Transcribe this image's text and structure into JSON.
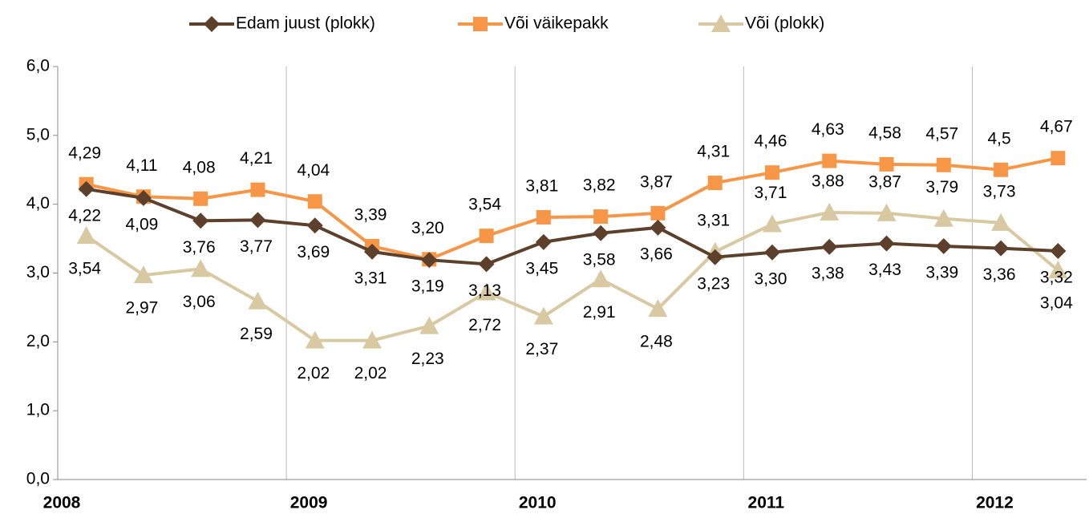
{
  "chart_data": {
    "type": "line",
    "categories": [
      "2008",
      null,
      null,
      null,
      "2009",
      null,
      null,
      null,
      "2010",
      null,
      null,
      null,
      "2011",
      null,
      null,
      null,
      "2012",
      null
    ],
    "series": [
      {
        "name": "Edam juust (plokk)",
        "color": "#5c402b",
        "marker": "diamond",
        "values": [
          4.22,
          4.09,
          3.76,
          3.77,
          3.69,
          3.31,
          3.19,
          3.13,
          3.45,
          3.58,
          3.66,
          3.23,
          3.3,
          3.38,
          3.43,
          3.39,
          3.36,
          3.32
        ],
        "value_labels": [
          "4,22",
          "4,09",
          "3,76",
          "3,77",
          "3,69",
          "3,31",
          "3,19",
          "3,13",
          "3,45",
          "3,58",
          "3,66",
          "3,23",
          "3,30",
          "3,38",
          "3,43",
          "3,39",
          "3,36",
          "3,32"
        ]
      },
      {
        "name": "Või väikepakk",
        "color": "#f79646",
        "marker": "square",
        "values": [
          4.29,
          4.11,
          4.08,
          4.21,
          4.04,
          3.39,
          3.2,
          3.54,
          3.81,
          3.82,
          3.87,
          4.31,
          4.46,
          4.63,
          4.58,
          4.57,
          4.5,
          4.67
        ],
        "value_labels": [
          "4,29",
          "4,11",
          "4,08",
          "4,21",
          "4,04",
          "3,39",
          "3,20",
          "3,54",
          "3,81",
          "3,82",
          "3,87",
          "4,31",
          "4,46",
          "4,63",
          "4,58",
          "4,57",
          "4,5",
          "4,67"
        ]
      },
      {
        "name": "Või (plokk)",
        "color": "#d8c9a2",
        "marker": "triangle",
        "values": [
          3.54,
          2.97,
          3.06,
          2.59,
          2.02,
          2.02,
          2.23,
          2.72,
          2.37,
          2.91,
          2.48,
          3.31,
          3.71,
          3.88,
          3.87,
          3.79,
          3.73,
          3.04
        ],
        "value_labels": [
          "3,54",
          "2,97",
          "3,06",
          "2,59",
          "2,02",
          "2,02",
          "2,23",
          "2,72",
          "2,37",
          "2,91",
          "2,48",
          "3,31",
          "3,71",
          "3,88",
          "3,87",
          "3,79",
          "3,73",
          "3,04"
        ]
      }
    ],
    "ylim": [
      0,
      6
    ],
    "yticks": [
      {
        "value": 0,
        "label": "0,0"
      },
      {
        "value": 1,
        "label": "1,0"
      },
      {
        "value": 2,
        "label": "2,0"
      },
      {
        "value": 3,
        "label": "3,0"
      },
      {
        "value": 4,
        "label": "4,0"
      },
      {
        "value": 5,
        "label": "5,0"
      },
      {
        "value": 6,
        "label": "6,0"
      }
    ],
    "legend": "top"
  }
}
